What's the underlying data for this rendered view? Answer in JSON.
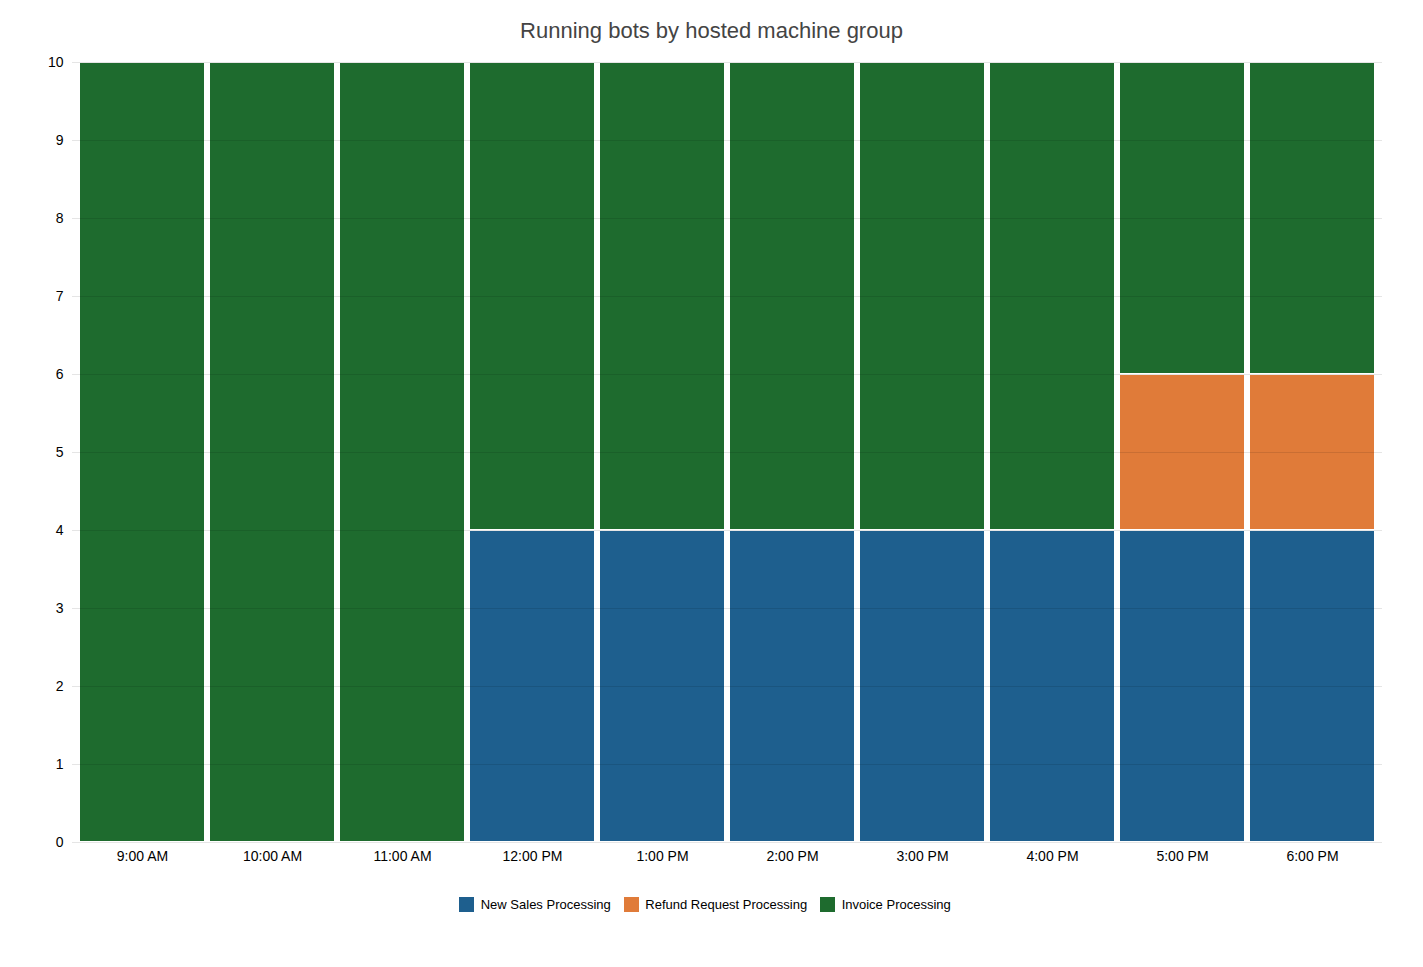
{
  "chart_data": {
    "type": "bar",
    "title": "Running bots by hosted machine group",
    "categories": [
      "9:00 AM",
      "10:00 AM",
      "11:00 AM",
      "12:00 PM",
      "1:00 PM",
      "2:00 PM",
      "3:00 PM",
      "4:00 PM",
      "5:00 PM",
      "6:00 PM"
    ],
    "series": [
      {
        "name": "New Sales Processing",
        "color": "#1e5f8e",
        "values": [
          0,
          0,
          0,
          4,
          4,
          4,
          4,
          4,
          4,
          4
        ]
      },
      {
        "name": "Refund Request Processing",
        "color": "#e07b39",
        "values": [
          0,
          0,
          0,
          0,
          0,
          0,
          0,
          0,
          2,
          2
        ]
      },
      {
        "name": "Invoice Processing",
        "color": "#1e6b2e",
        "values": [
          10,
          10,
          10,
          6,
          6,
          6,
          6,
          6,
          4,
          4
        ]
      }
    ],
    "stacked": true,
    "ylim": [
      0,
      10
    ],
    "yticks": [
      0,
      1,
      2,
      3,
      4,
      5,
      6,
      7,
      8,
      9,
      10
    ],
    "grid": true,
    "legend": "bottom"
  }
}
